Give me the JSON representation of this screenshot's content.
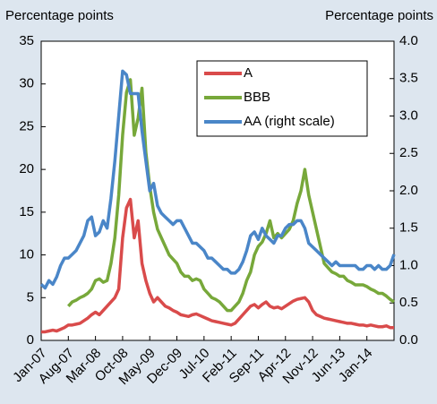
{
  "chart_data": {
    "type": "line",
    "ylabel": "Percentage points",
    "y2label": "Percentage points",
    "categories": [
      "Jan-07",
      null,
      null,
      null,
      null,
      null,
      null,
      "Aug-07",
      null,
      null,
      null,
      null,
      null,
      null,
      "Mar-08",
      null,
      null,
      null,
      null,
      null,
      null,
      "Oct-08",
      null,
      null,
      null,
      null,
      null,
      null,
      "May-09",
      null,
      null,
      null,
      null,
      null,
      null,
      "Dec-09",
      null,
      null,
      null,
      null,
      null,
      null,
      "Jul-10",
      null,
      null,
      null,
      null,
      null,
      null,
      "Feb-11",
      null,
      null,
      null,
      null,
      null,
      null,
      "Sep-11",
      null,
      null,
      null,
      null,
      null,
      null,
      "Apr-12",
      null,
      null,
      null,
      null,
      null,
      null,
      "Nov-12",
      null,
      null,
      null,
      null,
      null,
      null,
      "Jun-13",
      null,
      null,
      null,
      null,
      null,
      null,
      "Jan-14",
      null,
      null,
      null,
      null,
      null,
      null,
      null
    ],
    "series": [
      {
        "name": "A",
        "color": "#d94b4b",
        "values": [
          1.0,
          1.0,
          1.1,
          1.2,
          1.1,
          1.3,
          1.5,
          1.8,
          1.8,
          1.9,
          2.0,
          2.3,
          2.6,
          3.0,
          3.3,
          3.0,
          3.5,
          4.0,
          4.5,
          5.0,
          6.0,
          12.0,
          15.5,
          16.5,
          12.0,
          14.0,
          9.0,
          7.0,
          5.5,
          4.5,
          5.0,
          4.5,
          4.0,
          3.8,
          3.5,
          3.3,
          3.0,
          2.9,
          2.8,
          3.0,
          3.1,
          2.9,
          2.7,
          2.5,
          2.3,
          2.2,
          2.1,
          2.0,
          1.9,
          1.8,
          2.0,
          2.5,
          3.0,
          3.5,
          4.0,
          4.2,
          3.8,
          4.2,
          4.5,
          4.0,
          3.8,
          3.9,
          3.7,
          4.0,
          4.3,
          4.6,
          4.8,
          4.9,
          5.0,
          4.5,
          3.5,
          3.0,
          2.8,
          2.6,
          2.5,
          2.4,
          2.3,
          2.2,
          2.1,
          2.0,
          2.0,
          1.9,
          1.8,
          1.8,
          1.7,
          1.8,
          1.7,
          1.6,
          1.6,
          1.7,
          1.5,
          1.5
        ]
      },
      {
        "name": "BBB",
        "color": "#77a83a",
        "values": [
          null,
          null,
          null,
          null,
          null,
          null,
          null,
          4.0,
          4.5,
          4.7,
          5.0,
          5.2,
          5.5,
          6.0,
          7.0,
          7.2,
          6.8,
          7.0,
          9.0,
          12.0,
          17.0,
          24.0,
          29.0,
          30.5,
          24.0,
          26.0,
          29.5,
          22.0,
          18.0,
          15.0,
          13.0,
          12.0,
          11.0,
          10.0,
          9.5,
          9.0,
          8.0,
          7.5,
          7.5,
          7.0,
          7.2,
          7.0,
          6.0,
          5.5,
          5.0,
          4.8,
          4.5,
          4.0,
          3.5,
          3.5,
          4.0,
          4.5,
          5.5,
          7.0,
          8.0,
          10.0,
          11.0,
          11.5,
          12.5,
          14.0,
          12.0,
          12.5,
          12.0,
          12.5,
          13.0,
          14.0,
          16.0,
          17.5,
          20.0,
          17.0,
          15.0,
          13.0,
          11.0,
          9.0,
          8.5,
          8.0,
          7.8,
          7.5,
          7.5,
          7.0,
          6.8,
          6.5,
          6.5,
          6.5,
          6.3,
          6.0,
          5.8,
          5.5,
          5.5,
          5.2,
          4.8,
          4.5
        ]
      },
      {
        "name": "AA (right scale)",
        "color": "#4a86c8",
        "axis": "y2",
        "values": [
          0.75,
          0.7,
          0.8,
          0.75,
          0.85,
          1.0,
          1.1,
          1.1,
          1.15,
          1.2,
          1.3,
          1.4,
          1.6,
          1.65,
          1.4,
          1.45,
          1.6,
          1.5,
          1.9,
          2.4,
          3.0,
          3.6,
          3.55,
          3.3,
          3.3,
          3.3,
          2.8,
          2.4,
          2.0,
          2.1,
          1.8,
          1.7,
          1.65,
          1.6,
          1.55,
          1.6,
          1.6,
          1.5,
          1.4,
          1.3,
          1.3,
          1.25,
          1.2,
          1.1,
          1.1,
          1.05,
          1.0,
          0.95,
          0.95,
          0.9,
          0.9,
          0.95,
          1.05,
          1.2,
          1.4,
          1.45,
          1.35,
          1.5,
          1.4,
          1.35,
          1.3,
          1.4,
          1.4,
          1.5,
          1.55,
          1.55,
          1.6,
          1.6,
          1.5,
          1.3,
          1.25,
          1.2,
          1.15,
          1.1,
          1.05,
          1.0,
          1.05,
          1.0,
          1.0,
          1.0,
          1.0,
          1.0,
          0.95,
          0.95,
          1.0,
          1.0,
          0.95,
          1.0,
          0.95,
          0.95,
          1.0,
          1.15
        ]
      }
    ],
    "ylim": [
      0,
      35
    ],
    "yticks": [
      0,
      5,
      10,
      15,
      20,
      25,
      30,
      35
    ],
    "y2lim": [
      0,
      4
    ],
    "y2ticks": [
      {
        "value": 0,
        "label": "0.0"
      },
      {
        "value": 0.5,
        "label": "0.5"
      },
      {
        "value": 1,
        "label": "1.0"
      },
      {
        "value": 1.5,
        "label": "1.5"
      },
      {
        "value": 2,
        "label": "2.0"
      },
      {
        "value": 2.5,
        "label": "2.5"
      },
      {
        "value": 3,
        "label": "3.0"
      },
      {
        "value": 3.5,
        "label": "3.5"
      },
      {
        "value": 4,
        "label": "4.0"
      }
    ],
    "legend": "upper right"
  }
}
